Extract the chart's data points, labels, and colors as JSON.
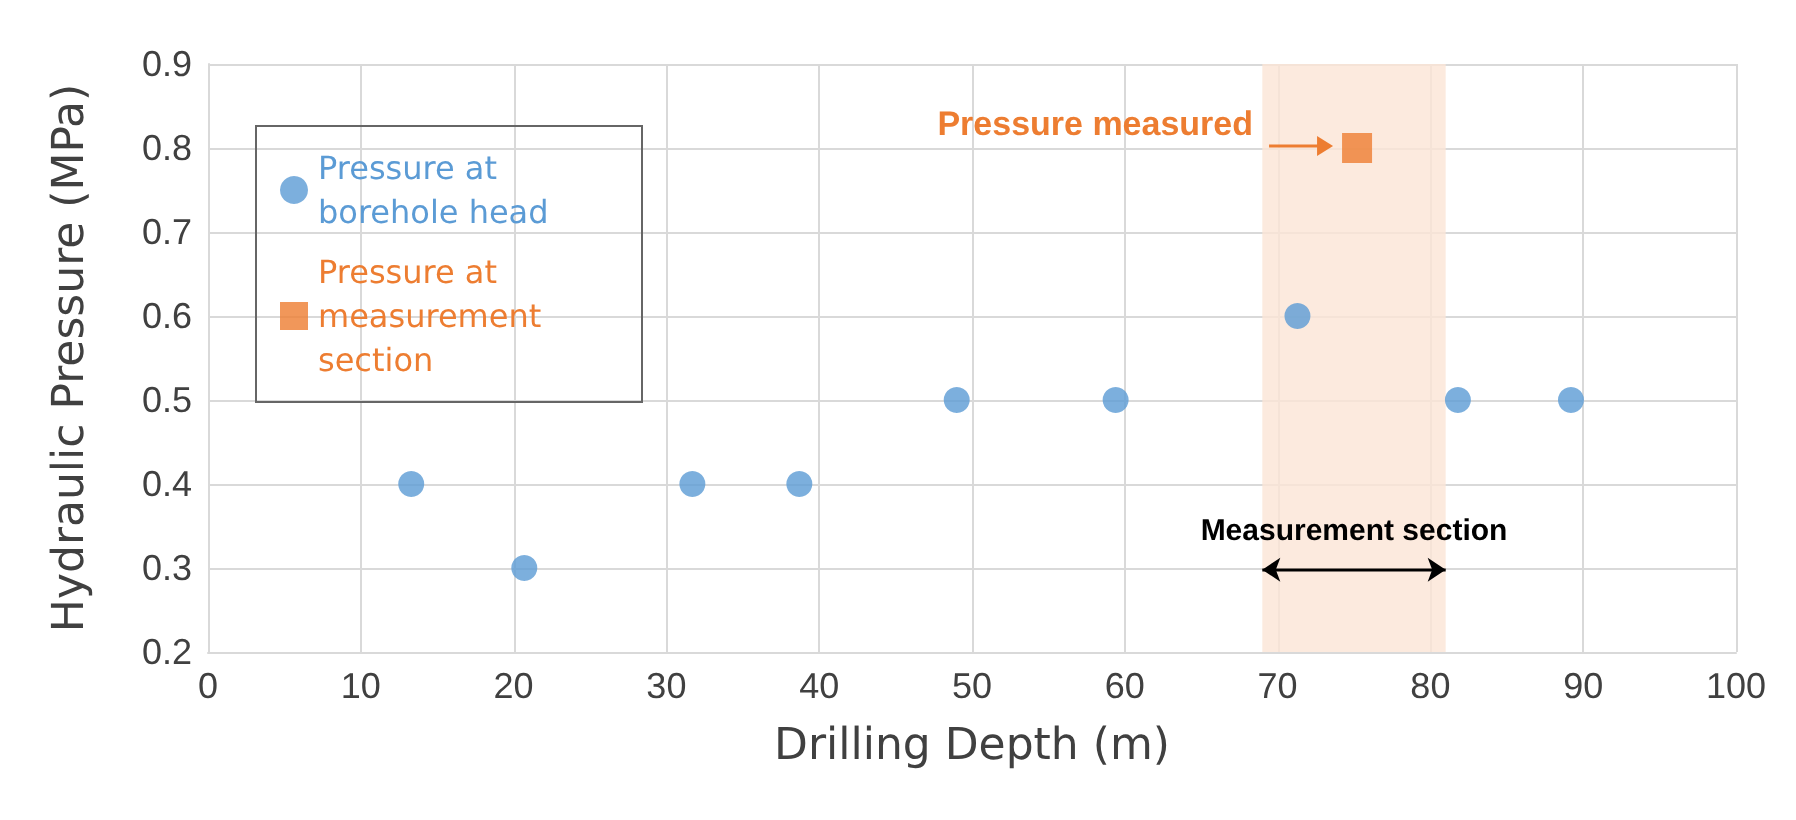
{
  "chart_data": {
    "type": "scatter",
    "xlabel": "Drilling Depth (m)",
    "ylabel": "Hydraulic Pressure (MPa)",
    "series": [
      {
        "name": "Pressure at borehole head",
        "color": "#5b9bd5",
        "marker": "circle",
        "x": [
          13.3,
          20.7,
          31.7,
          38.7,
          49.0,
          59.4,
          71.3,
          81.8,
          89.2
        ],
        "values": [
          0.4,
          0.3,
          0.4,
          0.4,
          0.5,
          0.5,
          0.6,
          0.5,
          0.5
        ]
      },
      {
        "name": "Pressure at measurement section",
        "color": "#ed7d31",
        "marker": "square",
        "x": [
          75.2
        ],
        "values": [
          0.8
        ]
      }
    ],
    "xlim": [
      0,
      100
    ],
    "xticks": [
      0,
      10,
      20,
      30,
      40,
      50,
      60,
      70,
      80,
      90,
      100
    ],
    "ylim": [
      0.2,
      0.9
    ],
    "yticks": [
      0.2,
      0.3,
      0.4,
      0.5,
      0.6,
      0.7,
      0.8,
      0.9
    ],
    "bands": [
      {
        "axis": "x",
        "from": 69,
        "to": 81,
        "label": "Measurement section",
        "color": "#fbe5d6"
      }
    ],
    "annotations": [
      "Pressure measured"
    ],
    "grid": true,
    "legend": "top left"
  }
}
